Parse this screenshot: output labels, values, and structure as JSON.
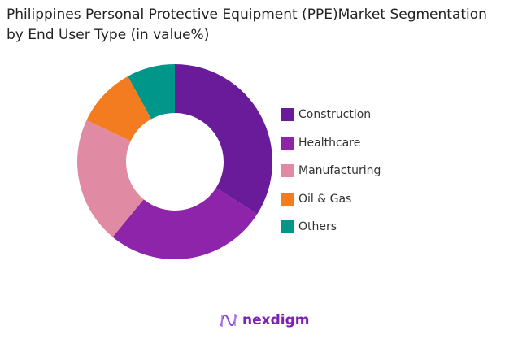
{
  "chart_data": {
    "type": "pie",
    "variant": "donut",
    "title": "Philippines Personal Protective Equipment (PPE)Market Segmentation by End User Type (in value%)",
    "categories": [
      "Construction",
      "Healthcare",
      "Manufacturing",
      "Oil & Gas",
      "Others"
    ],
    "values": [
      34,
      27,
      21,
      10,
      8
    ],
    "colors": [
      "#6a1b9a",
      "#8e24aa",
      "#e08aa3",
      "#f47c20",
      "#00968a"
    ],
    "legend": "right"
  },
  "brand": {
    "name": "nexdigm"
  }
}
